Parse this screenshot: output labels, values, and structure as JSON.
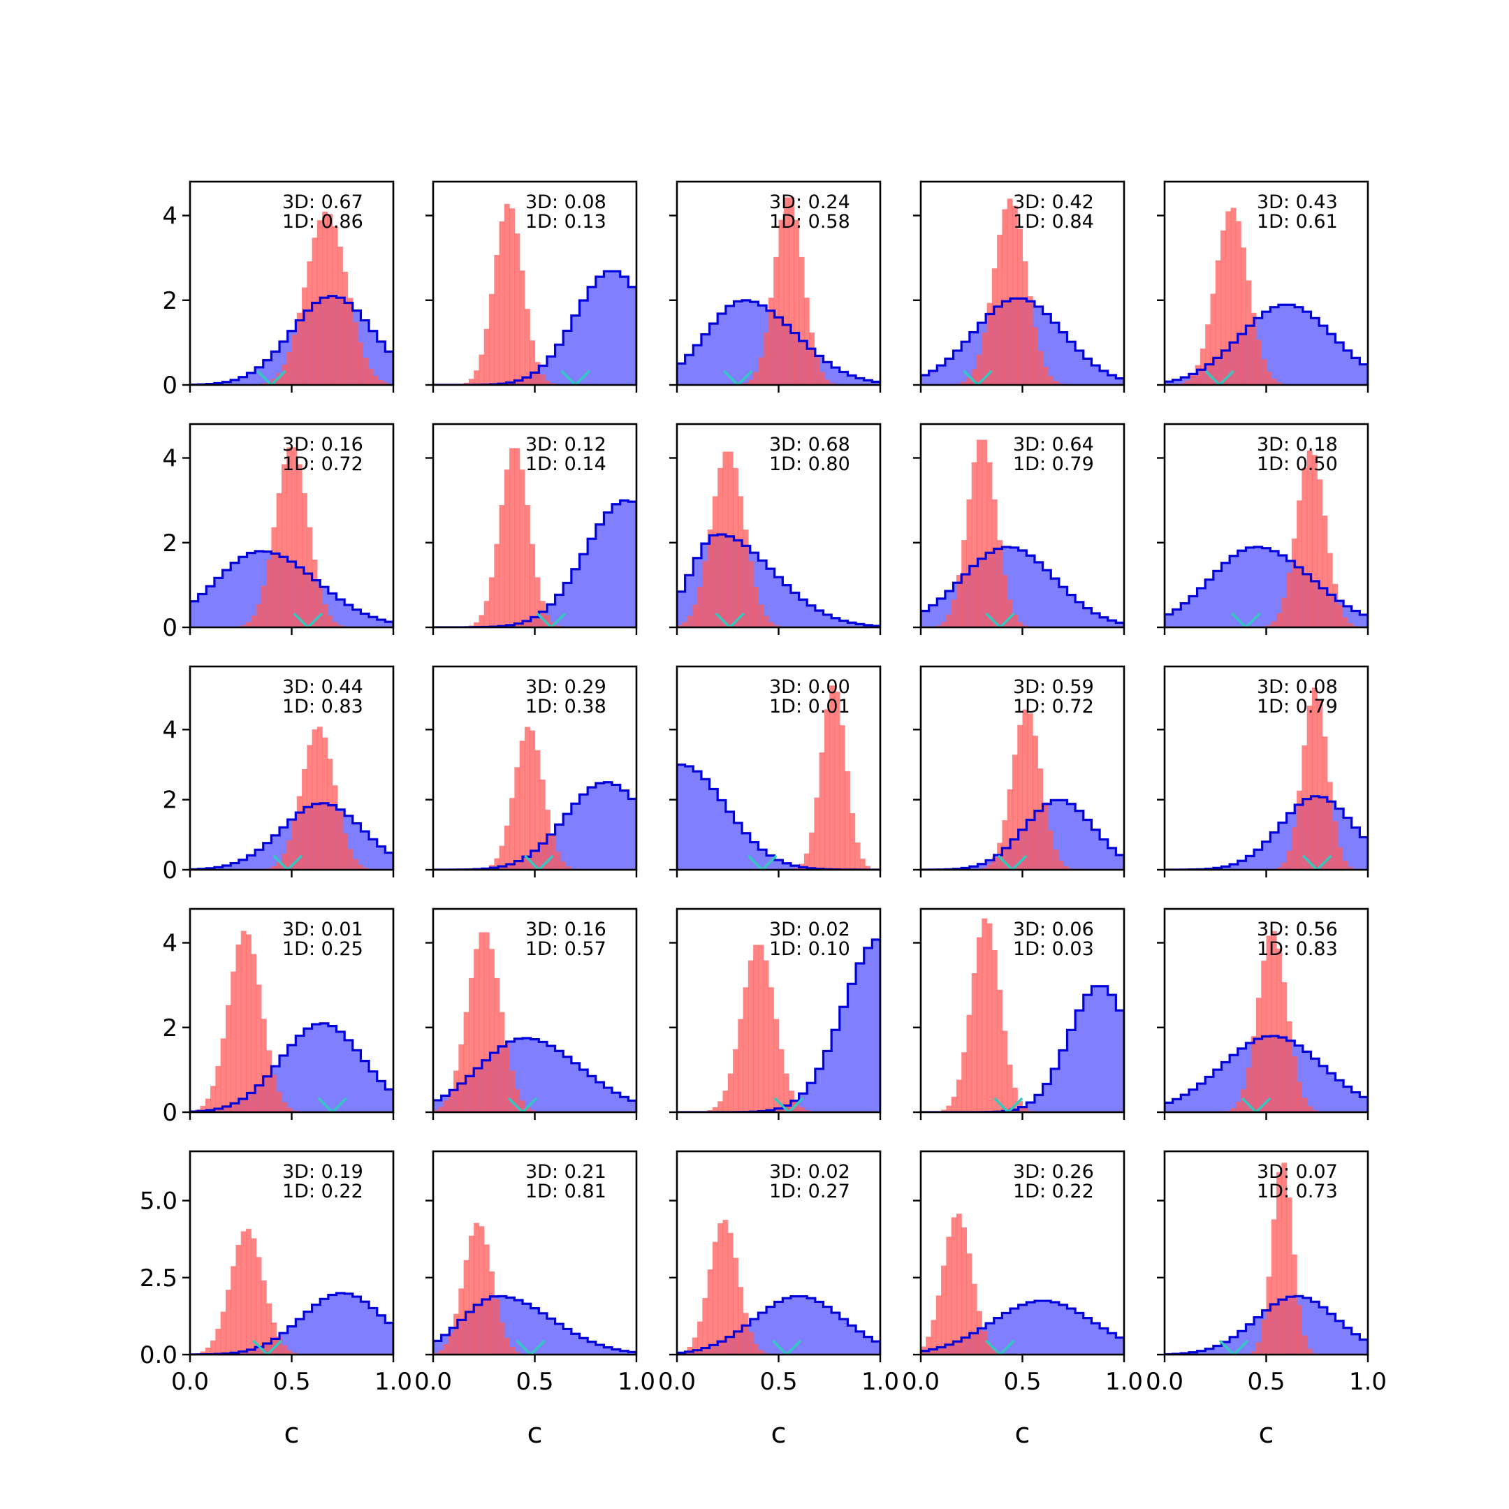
{
  "chart_data": {
    "type": "histogram-grid",
    "rows": 5,
    "cols": 5,
    "xlabel": "c",
    "xlim": [
      0.0,
      1.0
    ],
    "xticks": [
      0.0,
      0.5,
      1.0
    ],
    "xtick_labels": [
      "0.0",
      "0.5",
      "1.0"
    ],
    "row_ylim": [
      [
        0,
        4.8
      ],
      [
        0,
        4.8
      ],
      [
        0,
        5.8
      ],
      [
        0,
        4.8
      ],
      [
        0,
        6.6
      ]
    ],
    "row_yticks": [
      [
        0,
        2,
        4
      ],
      [
        0,
        2,
        4
      ],
      [
        0,
        2,
        4
      ],
      [
        0,
        2,
        4
      ],
      [
        0.0,
        2.5,
        5.0
      ]
    ],
    "row_ytick_labels": [
      [
        "0",
        "2",
        "4"
      ],
      [
        "0",
        "2",
        "4"
      ],
      [
        "0",
        "2",
        "4"
      ],
      [
        "0",
        "2",
        "4"
      ],
      [
        "0.0",
        "2.5",
        "5.0"
      ]
    ],
    "colors": {
      "broad_fill": "#8080ff",
      "broad_edge": "#0000dd",
      "narrow_fill": "#ff5a5a",
      "marker": "#33c9c0",
      "axes": "#000000"
    },
    "series_order": [
      "broad",
      "narrow",
      "marker"
    ],
    "panels": [
      {
        "row": 0,
        "col": 0,
        "label_3d": "3D: 0.67",
        "label_1d": "1D: 0.86",
        "broad": {
          "mean": 0.7,
          "sd": 0.2,
          "peak": 2.1,
          "skew": 0
        },
        "narrow": {
          "mean": 0.67,
          "sd": 0.1,
          "peak": 4.1
        },
        "marker": 0.4
      },
      {
        "row": 0,
        "col": 1,
        "label_3d": "3D: 0.08",
        "label_1d": "1D: 0.13",
        "broad": {
          "mean": 0.88,
          "sd": 0.18,
          "peak": 2.7,
          "skew": 0
        },
        "narrow": {
          "mean": 0.37,
          "sd": 0.07,
          "peak": 4.3
        },
        "marker": 0.7
      },
      {
        "row": 0,
        "col": 2,
        "label_3d": "3D: 0.24",
        "label_1d": "1D: 0.58",
        "broad": {
          "mean": 0.33,
          "sd": 0.22,
          "peak": 2.0,
          "skew": 0.15
        },
        "narrow": {
          "mean": 0.55,
          "sd": 0.07,
          "peak": 4.5
        },
        "marker": 0.3
      },
      {
        "row": 0,
        "col": 3,
        "label_3d": "3D: 0.42",
        "label_1d": "1D: 0.84",
        "broad": {
          "mean": 0.48,
          "sd": 0.22,
          "peak": 2.05,
          "skew": 0
        },
        "narrow": {
          "mean": 0.44,
          "sd": 0.08,
          "peak": 4.4
        },
        "marker": 0.28
      },
      {
        "row": 0,
        "col": 4,
        "label_3d": "3D: 0.43",
        "label_1d": "1D: 0.61",
        "broad": {
          "mean": 0.6,
          "sd": 0.23,
          "peak": 1.9,
          "skew": 0
        },
        "narrow": {
          "mean": 0.33,
          "sd": 0.08,
          "peak": 4.2
        },
        "marker": 0.27
      },
      {
        "row": 1,
        "col": 0,
        "label_3d": "3D: 0.16",
        "label_1d": "1D: 0.72",
        "broad": {
          "mean": 0.35,
          "sd": 0.25,
          "peak": 1.8,
          "skew": 0.1
        },
        "narrow": {
          "mean": 0.5,
          "sd": 0.08,
          "peak": 4.3
        },
        "marker": 0.58
      },
      {
        "row": 1,
        "col": 1,
        "label_3d": "3D: 0.12",
        "label_1d": "1D: 0.14",
        "broad": {
          "mean": 0.95,
          "sd": 0.2,
          "peak": 3.0,
          "skew": 0
        },
        "narrow": {
          "mean": 0.4,
          "sd": 0.07,
          "peak": 4.3
        },
        "marker": 0.58
      },
      {
        "row": 1,
        "col": 2,
        "label_3d": "3D: 0.68",
        "label_1d": "1D: 0.80",
        "broad": {
          "mean": 0.2,
          "sd": 0.2,
          "peak": 2.2,
          "skew": 0.35
        },
        "narrow": {
          "mean": 0.25,
          "sd": 0.08,
          "peak": 4.2
        },
        "marker": 0.26
      },
      {
        "row": 1,
        "col": 3,
        "label_3d": "3D: 0.64",
        "label_1d": "1D: 0.79",
        "broad": {
          "mean": 0.43,
          "sd": 0.23,
          "peak": 1.9,
          "skew": 0
        },
        "narrow": {
          "mean": 0.3,
          "sd": 0.07,
          "peak": 4.5
        },
        "marker": 0.39
      },
      {
        "row": 1,
        "col": 4,
        "label_3d": "3D: 0.18",
        "label_1d": "1D: 0.50",
        "broad": {
          "mean": 0.45,
          "sd": 0.25,
          "peak": 1.9,
          "skew": 0.1
        },
        "narrow": {
          "mean": 0.72,
          "sd": 0.07,
          "peak": 4.2
        },
        "marker": 0.4
      },
      {
        "row": 2,
        "col": 0,
        "label_3d": "3D: 0.44",
        "label_1d": "1D: 0.83",
        "broad": {
          "mean": 0.65,
          "sd": 0.2,
          "peak": 1.9,
          "skew": 0
        },
        "narrow": {
          "mean": 0.63,
          "sd": 0.08,
          "peak": 4.1
        },
        "marker": 0.48
      },
      {
        "row": 2,
        "col": 1,
        "label_3d": "3D: 0.29",
        "label_1d": "1D: 0.38",
        "broad": {
          "mean": 0.85,
          "sd": 0.2,
          "peak": 2.5,
          "skew": 0
        },
        "narrow": {
          "mean": 0.47,
          "sd": 0.07,
          "peak": 4.1
        },
        "marker": 0.52
      },
      {
        "row": 2,
        "col": 2,
        "label_3d": "3D: 0.00",
        "label_1d": "1D: 0.01",
        "broad": {
          "mean": 0.02,
          "sd": 0.22,
          "peak": 3.0,
          "skew": 0
        },
        "narrow": {
          "mean": 0.77,
          "sd": 0.06,
          "peak": 5.3
        },
        "marker": 0.42
      },
      {
        "row": 2,
        "col": 3,
        "label_3d": "3D: 0.59",
        "label_1d": "1D: 0.72",
        "broad": {
          "mean": 0.68,
          "sd": 0.17,
          "peak": 2.0,
          "skew": 0
        },
        "narrow": {
          "mean": 0.52,
          "sd": 0.07,
          "peak": 4.6
        },
        "marker": 0.45
      },
      {
        "row": 2,
        "col": 4,
        "label_3d": "3D: 0.08",
        "label_1d": "1D: 0.79",
        "broad": {
          "mean": 0.75,
          "sd": 0.18,
          "peak": 2.1,
          "skew": 0
        },
        "narrow": {
          "mean": 0.74,
          "sd": 0.06,
          "peak": 5.2
        },
        "marker": 0.75
      },
      {
        "row": 3,
        "col": 0,
        "label_3d": "3D: 0.01",
        "label_1d": "1D: 0.25",
        "broad": {
          "mean": 0.65,
          "sd": 0.2,
          "peak": 2.1,
          "skew": 0
        },
        "narrow": {
          "mean": 0.27,
          "sd": 0.08,
          "peak": 4.3
        },
        "marker": 0.7
      },
      {
        "row": 3,
        "col": 1,
        "label_3d": "3D: 0.16",
        "label_1d": "1D: 0.57",
        "broad": {
          "mean": 0.45,
          "sd": 0.25,
          "peak": 1.75,
          "skew": 0.1
        },
        "narrow": {
          "mean": 0.25,
          "sd": 0.08,
          "peak": 4.3
        },
        "marker": 0.44
      },
      {
        "row": 3,
        "col": 2,
        "label_3d": "3D: 0.02",
        "label_1d": "1D: 0.10",
        "broad": {
          "mean": 1.0,
          "sd": 0.18,
          "peak": 4.1,
          "skew": 0
        },
        "narrow": {
          "mean": 0.4,
          "sd": 0.08,
          "peak": 4.0
        },
        "marker": 0.55
      },
      {
        "row": 3,
        "col": 3,
        "label_3d": "3D: 0.06",
        "label_1d": "1D: 0.03",
        "broad": {
          "mean": 0.88,
          "sd": 0.15,
          "peak": 3.0,
          "skew": 0
        },
        "narrow": {
          "mean": 0.32,
          "sd": 0.07,
          "peak": 4.6
        },
        "marker": 0.43
      },
      {
        "row": 3,
        "col": 4,
        "label_3d": "3D: 0.56",
        "label_1d": "1D: 0.83",
        "broad": {
          "mean": 0.53,
          "sd": 0.25,
          "peak": 1.8,
          "skew": 0
        },
        "narrow": {
          "mean": 0.53,
          "sd": 0.07,
          "peak": 4.3
        },
        "marker": 0.45
      },
      {
        "row": 4,
        "col": 0,
        "label_3d": "3D: 0.19",
        "label_1d": "1D: 0.22",
        "broad": {
          "mean": 0.75,
          "sd": 0.2,
          "peak": 2.0,
          "skew": 0
        },
        "narrow": {
          "mean": 0.28,
          "sd": 0.08,
          "peak": 4.1
        },
        "marker": 0.38
      },
      {
        "row": 4,
        "col": 1,
        "label_3d": "3D: 0.21",
        "label_1d": "1D: 0.81",
        "broad": {
          "mean": 0.32,
          "sd": 0.22,
          "peak": 1.9,
          "skew": 0.2
        },
        "narrow": {
          "mean": 0.22,
          "sd": 0.07,
          "peak": 4.3
        },
        "marker": 0.48
      },
      {
        "row": 4,
        "col": 2,
        "label_3d": "3D: 0.02",
        "label_1d": "1D: 0.27",
        "broad": {
          "mean": 0.6,
          "sd": 0.22,
          "peak": 1.9,
          "skew": 0
        },
        "narrow": {
          "mean": 0.23,
          "sd": 0.07,
          "peak": 4.4
        },
        "marker": 0.54
      },
      {
        "row": 4,
        "col": 3,
        "label_3d": "3D: 0.26",
        "label_1d": "1D: 0.22",
        "broad": {
          "mean": 0.6,
          "sd": 0.25,
          "peak": 1.75,
          "skew": 0
        },
        "narrow": {
          "mean": 0.18,
          "sd": 0.07,
          "peak": 4.6
        },
        "marker": 0.39
      },
      {
        "row": 4,
        "col": 4,
        "label_3d": "3D: 0.07",
        "label_1d": "1D: 0.73",
        "broad": {
          "mean": 0.65,
          "sd": 0.2,
          "peak": 1.9,
          "skew": 0
        },
        "narrow": {
          "mean": 0.58,
          "sd": 0.05,
          "peak": 6.3
        },
        "marker": 0.34
      }
    ]
  }
}
